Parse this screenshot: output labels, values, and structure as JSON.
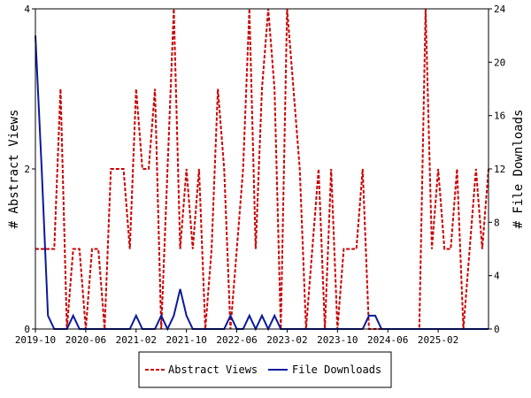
{
  "chart_data": {
    "type": "line",
    "title": "",
    "xlabel": "",
    "ylabel_left": "# Abstract Views",
    "ylabel_right": "# File Downloads",
    "x_tick_labels": [
      "2019-10",
      "2020-06",
      "2021-02",
      "2021-10",
      "2022-06",
      "2023-02",
      "2023-10",
      "2024-06",
      "2025-02"
    ],
    "ylim_left": [
      0,
      4
    ],
    "ylim_right": [
      0,
      24
    ],
    "y_ticks_left": [
      0,
      2,
      4
    ],
    "y_ticks_right": [
      0,
      4,
      8,
      12,
      16,
      20,
      24
    ],
    "grid": false,
    "legend_position": "bottom",
    "series": [
      {
        "name": "Abstract Views",
        "axis": "left",
        "color": "#cc0000",
        "style": "dashed",
        "values": [
          1,
          1,
          1,
          1,
          3,
          0,
          1,
          1,
          0,
          1,
          1,
          0,
          2,
          2,
          2,
          1,
          3,
          2,
          2,
          3,
          0,
          2,
          4,
          1,
          2,
          1,
          2,
          0,
          1,
          3,
          2,
          0,
          1,
          2,
          4,
          1,
          3,
          4,
          3,
          0,
          4,
          3,
          2,
          0,
          1,
          2,
          0,
          2,
          0,
          1,
          1,
          1,
          2,
          0,
          0,
          0,
          0,
          0,
          0,
          0,
          0,
          0,
          4,
          1,
          2,
          1,
          1,
          2,
          0,
          1,
          2,
          1,
          2
        ]
      },
      {
        "name": "File Downloads",
        "axis": "right",
        "color": "#0a1a9c",
        "style": "solid",
        "values": [
          22,
          12,
          1,
          0,
          0,
          0,
          1,
          0,
          0,
          0,
          0,
          0,
          0,
          0,
          0,
          0,
          1,
          0,
          0,
          0,
          1,
          0,
          1,
          3,
          1,
          0,
          0,
          0,
          0,
          0,
          0,
          1,
          0,
          0,
          1,
          0,
          1,
          0,
          1,
          0,
          0,
          0,
          0,
          0,
          0,
          0,
          0,
          0,
          0,
          0,
          0,
          0,
          0,
          1,
          1,
          0,
          0,
          0,
          0,
          0,
          0,
          0,
          0,
          0,
          0,
          0,
          0,
          0,
          0,
          0,
          0,
          0,
          0
        ]
      }
    ]
  }
}
